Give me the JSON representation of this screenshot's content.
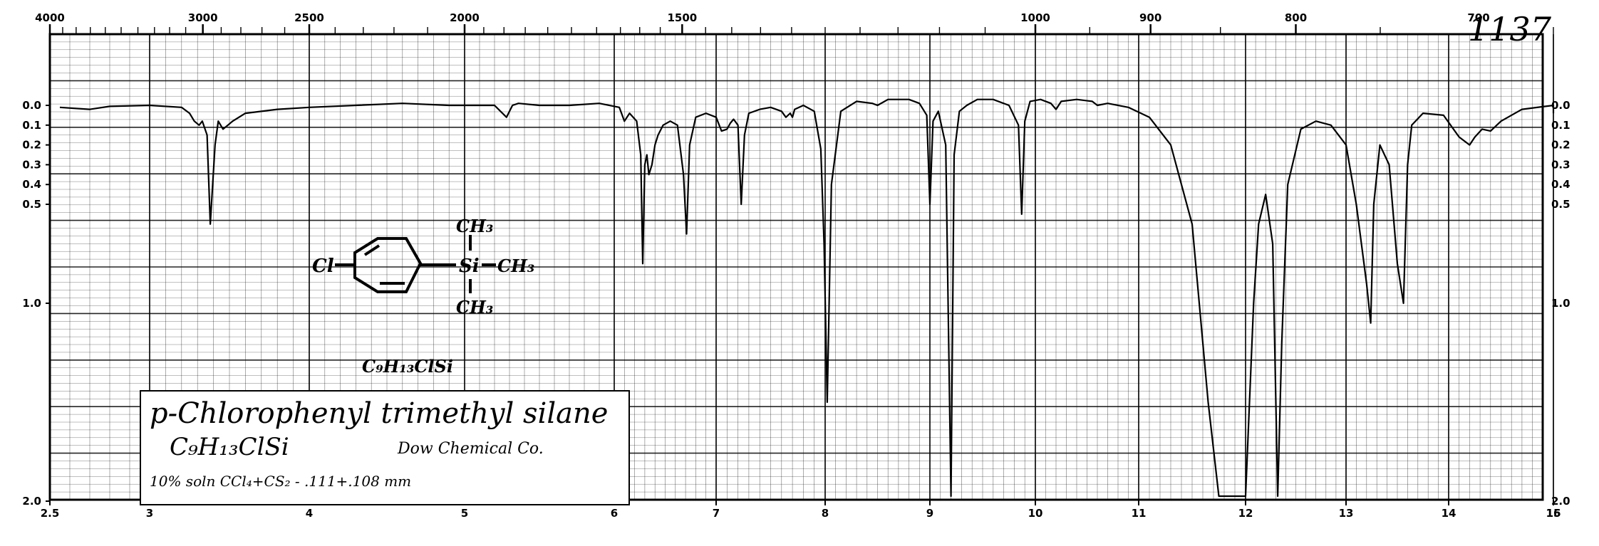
{
  "spectrum_number": "1137",
  "sample": {
    "name": "p-Chlorophenyl trimethyl silane",
    "formula": "C₉H₁₃ClSi",
    "formula_structure": "C₉H₁₃ClSi",
    "source": "Dow Chemical Co.",
    "conditions": "10% soln CCl₄+CS₂ - .111+.108 mm"
  },
  "structure_labels": {
    "cl": "Cl",
    "si": "Si",
    "ch3_top": "CH₃",
    "ch3_right": "CH₃",
    "ch3_bottom": "CH₃"
  },
  "chart_data": {
    "type": "line",
    "x_axis": {
      "quantity": "wavelength (microns)",
      "range": [
        2.5,
        16
      ],
      "tick_labels": [
        "2.5",
        "3",
        "4",
        "5",
        "6",
        "7",
        "8",
        "9",
        "10",
        "11",
        "12",
        "13",
        "14",
        "15",
        "16"
      ]
    },
    "top_axis": {
      "quantity": "wavenumber (cm-1)",
      "tick_labels": [
        "4000",
        "3000",
        "2500",
        "2000",
        "1500",
        "1000",
        "900",
        "800",
        "700"
      ]
    },
    "y_axis": {
      "quantity": "absorbance",
      "scale": "log-transmittance",
      "tick_labels": [
        "0.0",
        "0.1",
        "0.2",
        "0.3",
        "0.4",
        "0.5",
        "1.0",
        "2.0"
      ]
    },
    "grid": true,
    "series": [
      {
        "x": [
          2.55,
          2.7,
          2.8,
          3.0,
          3.2,
          3.25,
          3.28,
          3.31,
          3.33,
          3.36,
          3.38,
          3.41,
          3.43,
          3.46,
          3.49,
          3.52,
          3.6,
          3.8,
          4.0,
          4.3,
          4.6,
          4.9,
          5.2,
          5.28,
          5.32,
          5.36,
          5.5,
          5.7,
          5.9,
          6.05,
          6.1,
          6.15,
          6.22,
          6.26,
          6.28,
          6.3,
          6.32,
          6.34,
          6.37,
          6.4,
          6.43,
          6.48,
          6.55,
          6.62,
          6.68,
          6.71,
          6.74,
          6.8,
          6.9,
          7.0,
          7.05,
          7.1,
          7.13,
          7.16,
          7.2,
          7.23,
          7.26,
          7.3,
          7.4,
          7.5,
          7.6,
          7.64,
          7.68,
          7.7,
          7.72,
          7.8,
          7.9,
          7.96,
          7.99,
          8.02,
          8.06,
          8.15,
          8.3,
          8.45,
          8.5,
          8.6,
          8.8,
          8.9,
          8.97,
          9.0,
          9.03,
          9.08,
          9.15,
          9.2,
          9.23,
          9.28,
          9.35,
          9.45,
          9.6,
          9.75,
          9.84,
          9.87,
          9.9,
          9.95,
          10.05,
          10.15,
          10.2,
          10.25,
          10.4,
          10.55,
          10.6,
          10.7,
          10.9,
          11.1,
          11.3,
          11.5,
          11.65,
          11.75,
          11.85,
          12.0,
          12.08,
          12.13,
          12.2,
          12.27,
          12.32,
          12.36,
          12.42,
          12.55,
          12.7,
          12.85,
          13.0,
          13.1,
          13.2,
          13.24,
          13.27,
          13.33,
          13.42,
          13.5,
          13.56,
          13.6,
          13.64,
          13.75,
          13.95,
          14.1,
          14.2,
          14.25,
          14.32,
          14.4,
          14.5,
          14.7,
          15.0,
          15.2,
          15.4
        ],
        "y": [
          0.01,
          0.02,
          0.005,
          0.0,
          0.01,
          0.04,
          0.08,
          0.1,
          0.08,
          0.15,
          0.6,
          0.2,
          0.08,
          0.12,
          0.1,
          0.08,
          0.04,
          0.02,
          0.01,
          0.0,
          -0.01,
          0.0,
          0.0,
          0.06,
          0.0,
          -0.01,
          0.0,
          0.0,
          -0.01,
          0.01,
          0.08,
          0.04,
          0.08,
          0.25,
          0.8,
          0.3,
          0.25,
          0.35,
          0.3,
          0.2,
          0.15,
          0.1,
          0.08,
          0.1,
          0.35,
          0.65,
          0.2,
          0.06,
          0.04,
          0.06,
          0.13,
          0.12,
          0.09,
          0.07,
          0.1,
          0.5,
          0.15,
          0.04,
          0.02,
          0.01,
          0.03,
          0.06,
          0.04,
          0.06,
          0.02,
          0.0,
          0.03,
          0.22,
          0.7,
          1.5,
          0.4,
          0.03,
          -0.02,
          -0.01,
          0.0,
          -0.03,
          -0.03,
          -0.01,
          0.05,
          0.5,
          0.08,
          0.03,
          0.2,
          2.0,
          0.25,
          0.03,
          0.0,
          -0.03,
          -0.03,
          0.0,
          0.1,
          0.55,
          0.08,
          -0.02,
          -0.03,
          -0.01,
          0.02,
          -0.02,
          -0.03,
          -0.02,
          0.0,
          -0.01,
          0.01,
          0.06,
          0.2,
          0.6,
          1.5,
          2.0,
          2.0,
          2.0,
          1.0,
          0.6,
          0.45,
          0.7,
          2.0,
          1.2,
          0.4,
          0.12,
          0.08,
          0.1,
          0.2,
          0.5,
          0.9,
          1.1,
          0.5,
          0.2,
          0.3,
          0.8,
          1.0,
          0.3,
          0.1,
          0.04,
          0.05,
          0.16,
          0.2,
          0.16,
          0.12,
          0.13,
          0.08,
          0.02,
          0.0,
          0.02,
          0.04
        ]
      }
    ]
  }
}
